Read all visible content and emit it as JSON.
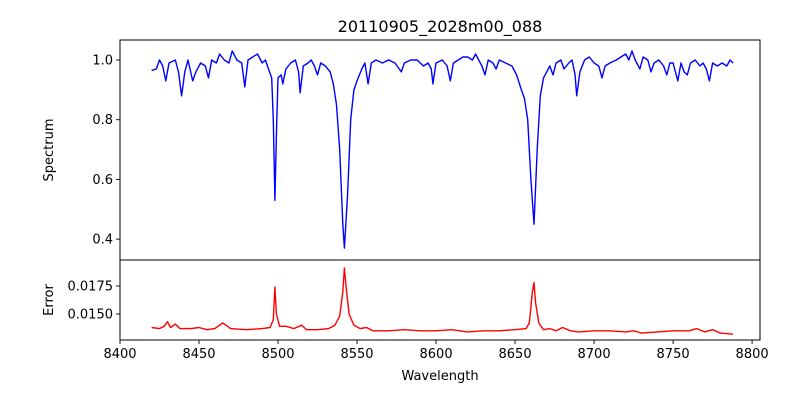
{
  "chart_data": [
    {
      "type": "line",
      "title": "20110905_2028m00_088",
      "xlabel": "",
      "ylabel": "Spectrum",
      "xlim": [
        8400,
        8805
      ],
      "ylim": [
        0.33,
        1.067
      ],
      "yticks": [
        0.4,
        0.6,
        0.8,
        1.0
      ],
      "ytick_labels": [
        "0.4",
        "0.6",
        "0.8",
        "1.0"
      ],
      "color": "#0000ff",
      "series": [
        {
          "name": "Spectrum",
          "x": [
            8420,
            8423,
            8425,
            8427,
            8429,
            8431,
            8435,
            8437,
            8439,
            8441,
            8443,
            8446,
            8448,
            8451,
            8454,
            8456,
            8458,
            8461,
            8463,
            8466,
            8469,
            8471,
            8474,
            8477,
            8479,
            8481,
            8484,
            8487,
            8490,
            8492,
            8494,
            8496,
            8497,
            8498,
            8499,
            8500,
            8502,
            8503,
            8505,
            8508,
            8511,
            8513,
            8514,
            8516,
            8519,
            8521,
            8523,
            8525,
            8527,
            8530,
            8533,
            8535,
            8537,
            8539,
            8541,
            8542,
            8544,
            8546,
            8548,
            8550,
            8553,
            8555,
            8557,
            8559,
            8562,
            8566,
            8570,
            8574,
            8578,
            8580,
            8584,
            8588,
            8592,
            8595,
            8597,
            8598,
            8600,
            8604,
            8607,
            8609,
            8611,
            8614,
            8617,
            8620,
            8623,
            8625,
            8627,
            8629,
            8631,
            8633,
            8636,
            8638,
            8640,
            8644,
            8648,
            8651,
            8654,
            8656,
            8658,
            8660,
            8662,
            8664,
            8666,
            8668,
            8670,
            8672,
            8674,
            8676,
            8679,
            8681,
            8684,
            8686,
            8688,
            8689,
            8691,
            8694,
            8697,
            8700,
            8703,
            8705,
            8707,
            8710,
            8714,
            8717,
            8720,
            8722,
            8724,
            8726,
            8729,
            8731,
            8734,
            8736,
            8738,
            8741,
            8744,
            8746,
            8748,
            8750,
            8753,
            8755,
            8757,
            8759,
            8761,
            8764,
            8767,
            8769,
            8771,
            8773,
            8775,
            8778,
            8781,
            8784,
            8786,
            8788
          ],
          "y": [
            0.965,
            0.97,
            1.0,
            0.98,
            0.93,
            0.99,
            1.0,
            0.96,
            0.88,
            0.96,
            1.0,
            0.93,
            0.96,
            0.99,
            0.98,
            0.94,
            1.0,
            0.99,
            1.02,
            1.0,
            0.99,
            1.03,
            1.0,
            0.99,
            0.91,
            1.0,
            1.01,
            1.02,
            0.99,
            1.0,
            0.97,
            0.94,
            0.8,
            0.53,
            0.75,
            0.94,
            0.95,
            0.92,
            0.97,
            0.99,
            1.0,
            0.96,
            0.89,
            0.98,
            0.99,
            1.0,
            0.98,
            0.95,
            0.99,
            0.98,
            0.96,
            0.92,
            0.85,
            0.7,
            0.45,
            0.37,
            0.55,
            0.8,
            0.9,
            0.93,
            0.97,
            0.99,
            0.92,
            0.99,
            1.0,
            0.99,
            1.0,
            0.99,
            0.96,
            0.99,
            1.0,
            1.0,
            0.98,
            0.99,
            0.97,
            0.92,
            0.99,
            1.0,
            0.98,
            0.93,
            0.99,
            1.0,
            1.01,
            1.01,
            1.0,
            1.02,
            1.0,
            0.98,
            0.95,
            1.0,
            0.99,
            0.97,
            1.0,
            0.99,
            0.98,
            0.95,
            0.9,
            0.87,
            0.8,
            0.6,
            0.45,
            0.7,
            0.88,
            0.94,
            0.96,
            0.98,
            0.95,
            0.99,
            1.0,
            0.97,
            0.99,
            1.0,
            0.95,
            0.88,
            0.96,
            1.0,
            1.01,
            0.99,
            0.98,
            0.94,
            0.98,
            0.99,
            1.0,
            1.01,
            1.02,
            1.0,
            1.03,
            1.0,
            0.97,
            1.01,
            1.0,
            0.96,
            0.99,
            1.0,
            0.98,
            0.95,
            0.99,
            0.99,
            0.93,
            0.99,
            0.96,
            0.95,
            0.99,
            1.0,
            0.98,
            0.99,
            0.97,
            0.93,
            0.99,
            0.98,
            0.99,
            0.98,
            1.0,
            0.99
          ]
        }
      ]
    },
    {
      "type": "line",
      "title": "",
      "xlabel": "Wavelength",
      "ylabel": "Error",
      "xlim": [
        8400,
        8805
      ],
      "ylim": [
        0.01268,
        0.01982
      ],
      "xticks": [
        8400,
        8450,
        8500,
        8550,
        8600,
        8650,
        8700,
        8750,
        8800
      ],
      "xtick_labels": [
        "8400",
        "8450",
        "8500",
        "8550",
        "8600",
        "8650",
        "8700",
        "8750",
        "8800"
      ],
      "yticks": [
        0.015,
        0.0175
      ],
      "ytick_labels": [
        "0.0150",
        "0.0175"
      ],
      "color": "#ff0000",
      "series": [
        {
          "name": "Error",
          "x": [
            8420,
            8425,
            8428,
            8430,
            8432,
            8435,
            8438,
            8445,
            8450,
            8455,
            8460,
            8465,
            8467,
            8470,
            8480,
            8490,
            8495,
            8497,
            8498,
            8499,
            8501,
            8505,
            8510,
            8515,
            8518,
            8525,
            8532,
            8536,
            8539,
            8541,
            8542,
            8543,
            8545,
            8548,
            8552,
            8556,
            8560,
            8570,
            8580,
            8590,
            8600,
            8610,
            8620,
            8630,
            8640,
            8650,
            8657,
            8659,
            8661,
            8662,
            8663,
            8665,
            8668,
            8672,
            8676,
            8680,
            8685,
            8690,
            8700,
            8710,
            8720,
            8725,
            8730,
            8740,
            8750,
            8760,
            8765,
            8770,
            8775,
            8780,
            8788
          ],
          "y": [
            0.0138,
            0.0137,
            0.0139,
            0.0143,
            0.0138,
            0.0141,
            0.0137,
            0.0137,
            0.0138,
            0.0136,
            0.0137,
            0.0142,
            0.014,
            0.0137,
            0.0136,
            0.0137,
            0.0138,
            0.0145,
            0.0174,
            0.015,
            0.0139,
            0.0139,
            0.0137,
            0.014,
            0.0136,
            0.0136,
            0.0137,
            0.014,
            0.0148,
            0.017,
            0.0191,
            0.0175,
            0.015,
            0.014,
            0.0137,
            0.0138,
            0.0135,
            0.0135,
            0.0136,
            0.0135,
            0.0135,
            0.0136,
            0.0134,
            0.0135,
            0.0135,
            0.0136,
            0.0137,
            0.0142,
            0.017,
            0.0178,
            0.016,
            0.0142,
            0.0136,
            0.0137,
            0.0135,
            0.0138,
            0.0135,
            0.0134,
            0.0135,
            0.0135,
            0.0134,
            0.0135,
            0.0133,
            0.0134,
            0.0135,
            0.0135,
            0.0137,
            0.0134,
            0.0136,
            0.0133,
            0.0132
          ]
        }
      ]
    }
  ]
}
